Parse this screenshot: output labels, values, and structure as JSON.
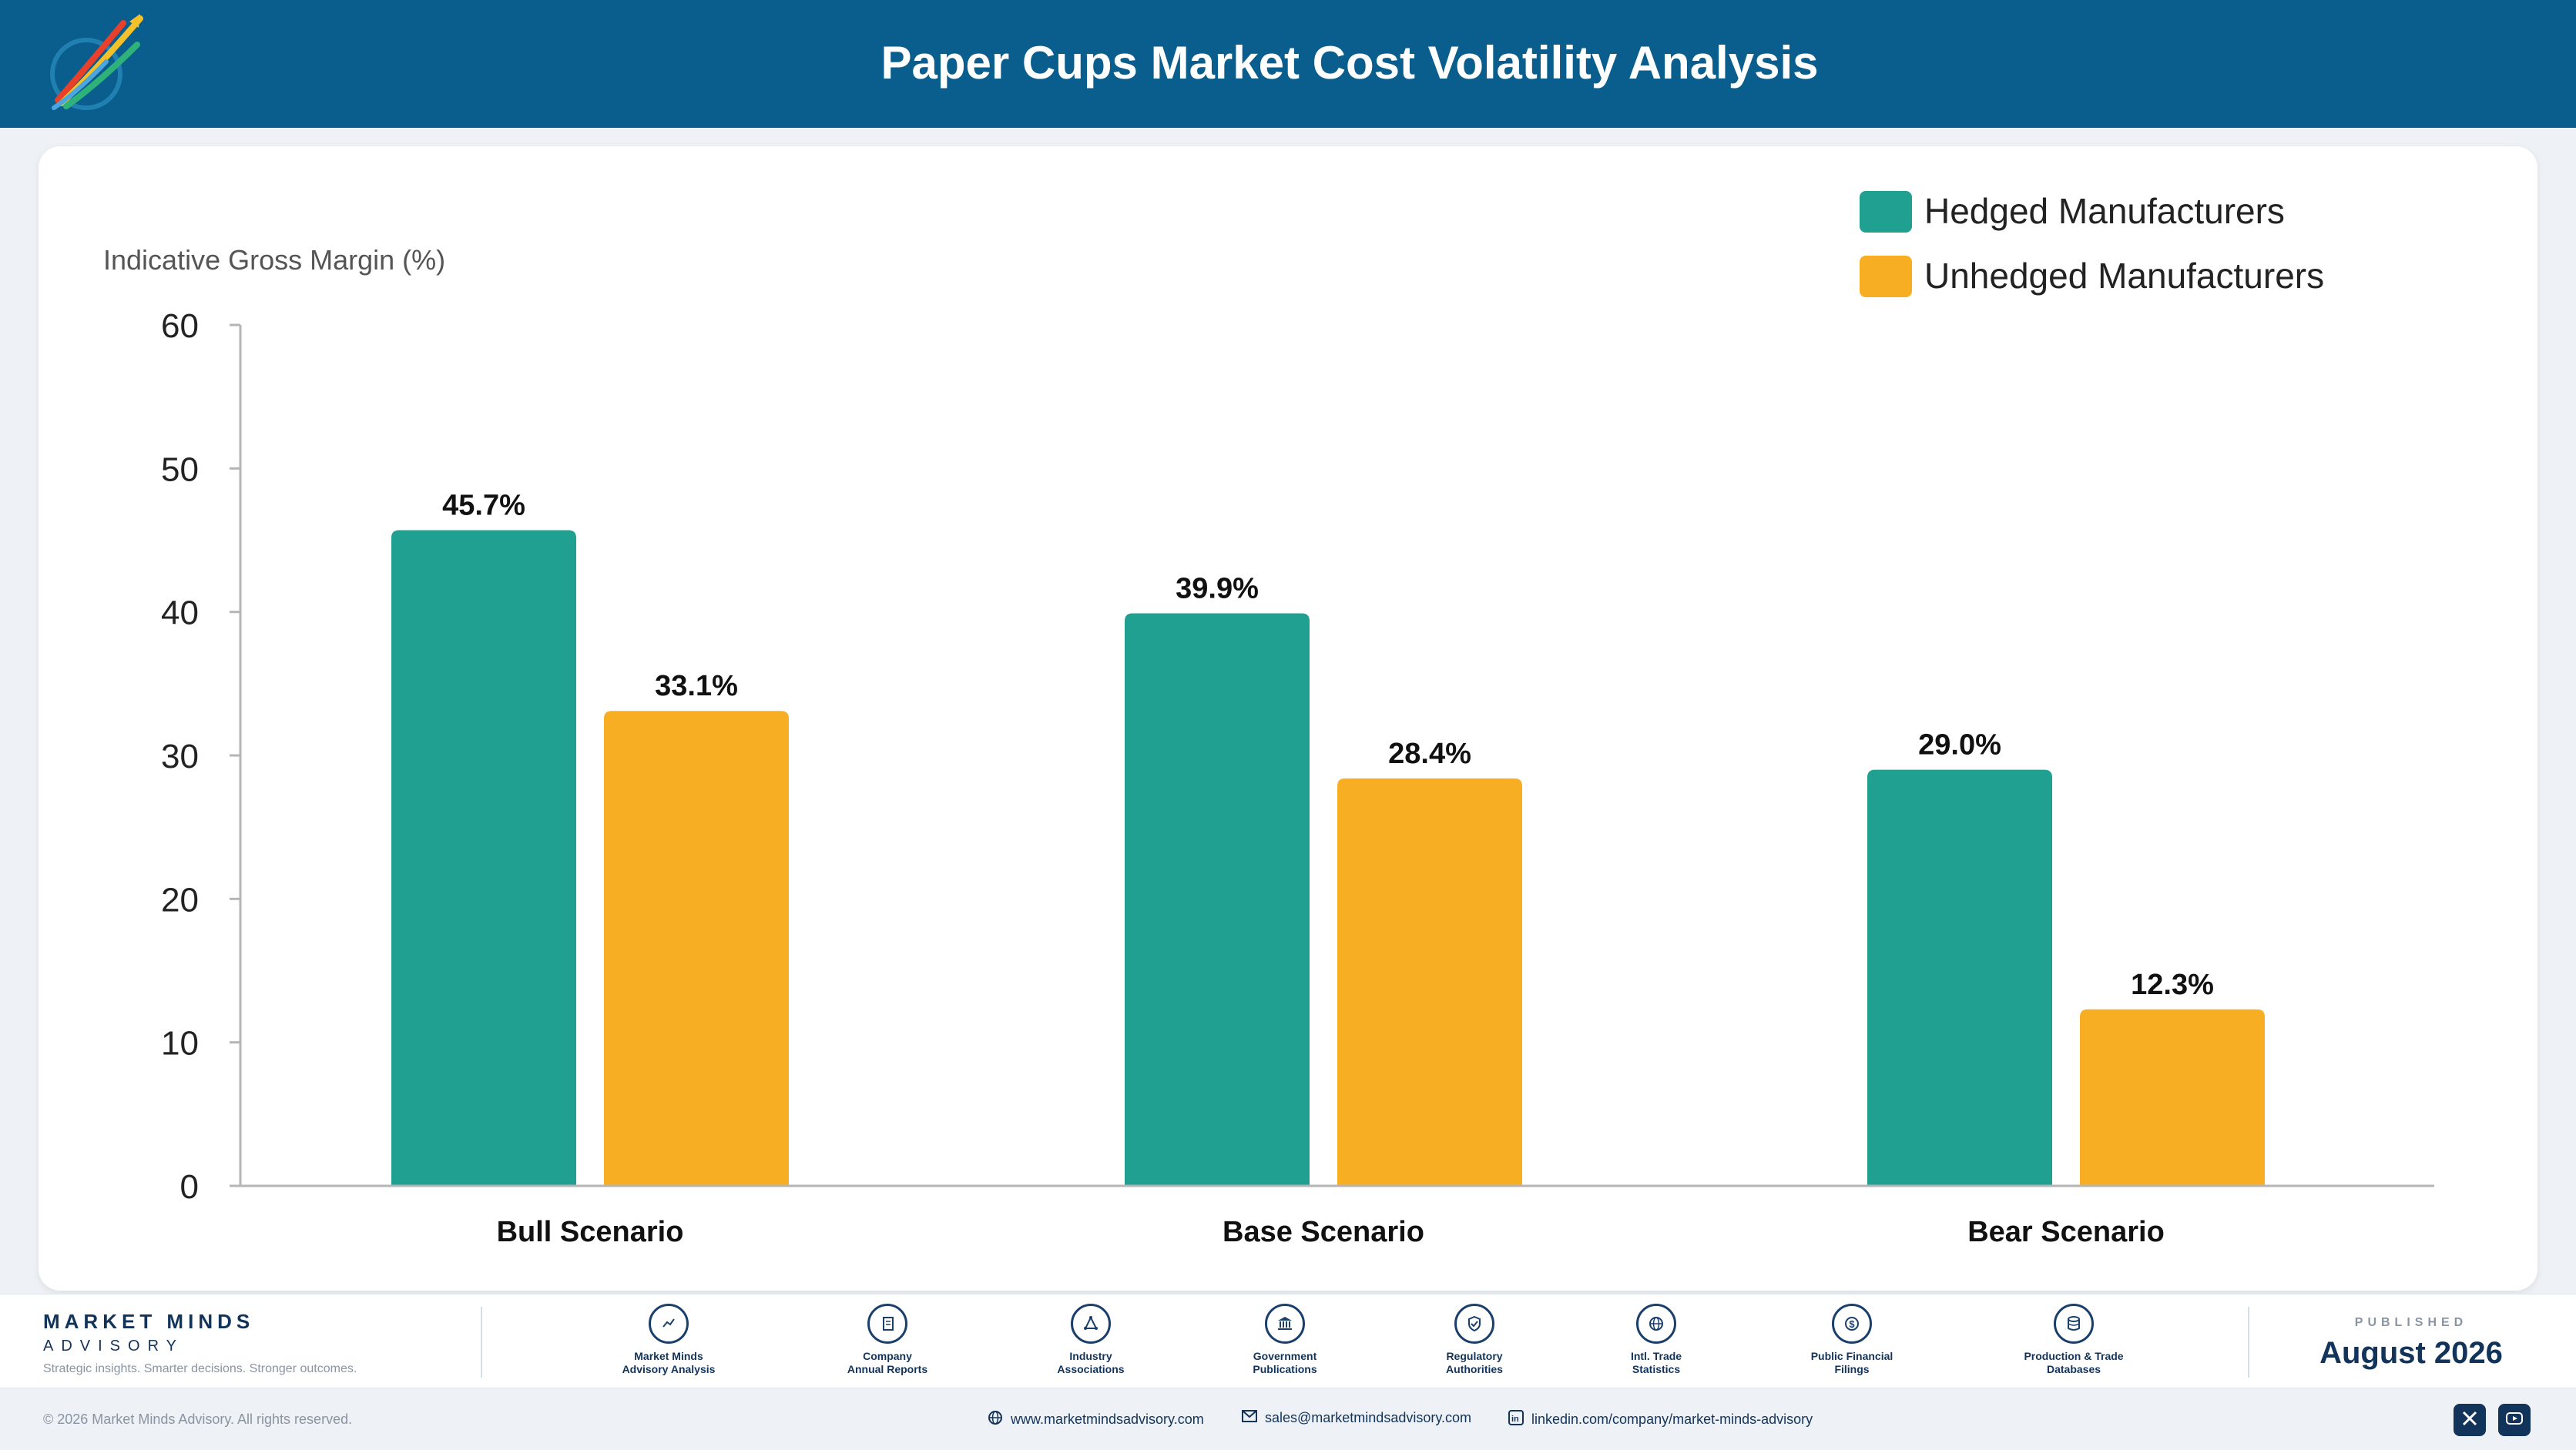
{
  "header": {
    "title": "Paper Cups Market Cost Volatility Analysis"
  },
  "colors": {
    "header_bg": "#0a5e8e",
    "hedged": "#20a090",
    "unhedged": "#f8ae22",
    "brand_navy": "#12335a"
  },
  "chart_data": {
    "type": "bar",
    "title": "Paper Cups Market Cost Volatility Analysis",
    "ylabel": "Indicative Gross Margin (%)",
    "xlabel": "",
    "ylim": [
      0,
      60
    ],
    "yticks": [
      0,
      10,
      20,
      30,
      40,
      50,
      60
    ],
    "categories": [
      "Bull Scenario",
      "Base Scenario",
      "Bear Scenario"
    ],
    "series": [
      {
        "name": "Hedged Manufacturers",
        "color": "#20a090",
        "values": [
          45.7,
          39.9,
          29.0
        ],
        "labels": [
          "45.7%",
          "39.9%",
          "29.0%"
        ]
      },
      {
        "name": "Unhedged Manufacturers",
        "color": "#f8ae22",
        "values": [
          33.1,
          28.4,
          12.3
        ],
        "labels": [
          "33.1%",
          "28.4%",
          "12.3%"
        ]
      }
    ],
    "grid": false,
    "legend_position": "top-right"
  },
  "footer": {
    "brand_name": "MARKET MINDS",
    "brand_sub": "ADVISORY",
    "tagline": "Strategic insights. Smarter decisions. Stronger outcomes.",
    "sources": [
      {
        "label": "Market Minds\nAdvisory Analysis",
        "icon": "trend-chart-icon"
      },
      {
        "label": "Company\nAnnual Reports",
        "icon": "document-icon"
      },
      {
        "label": "Industry\nAssociations",
        "icon": "network-icon"
      },
      {
        "label": "Government\nPublications",
        "icon": "government-building-icon"
      },
      {
        "label": "Regulatory\nAuthorities",
        "icon": "shield-icon"
      },
      {
        "label": "Intl. Trade\nStatistics",
        "icon": "globe-icon"
      },
      {
        "label": "Public Financial\nFilings",
        "icon": "dollar-icon"
      },
      {
        "label": "Production & Trade\nDatabases",
        "icon": "database-icon"
      }
    ],
    "published_label": "PUBLISHED",
    "published_date": "August 2026"
  },
  "bottom": {
    "copyright": "© 2026 Market Minds Advisory. All rights reserved.",
    "website": "www.marketmindsadvisory.com",
    "email": "sales@marketmindsadvisory.com",
    "linkedin": "linkedin.com/company/market-minds-advisory"
  }
}
